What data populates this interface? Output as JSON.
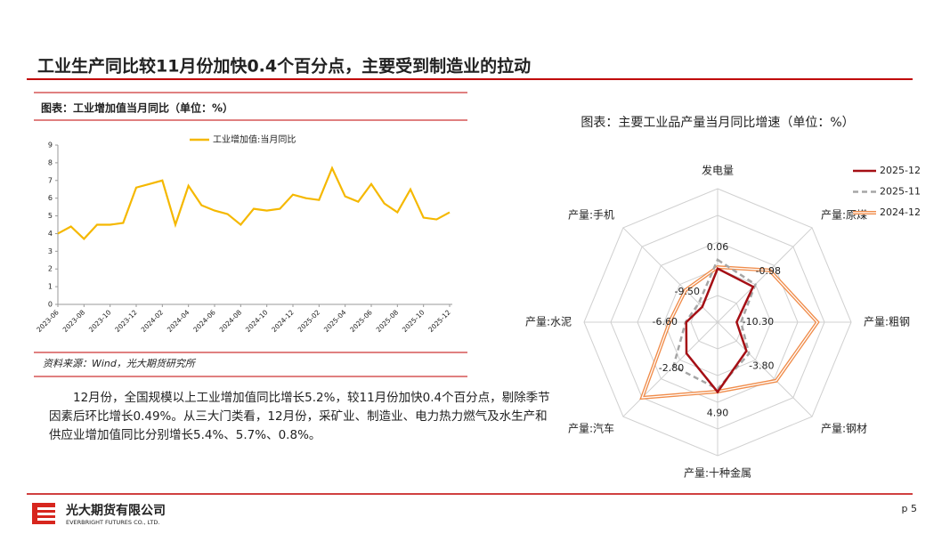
{
  "title": "工业生产同比较11月份加快0.4个百分点，主要受到制造业的拉动",
  "paragraph": "12月份，全国规模以上工业增加值同比增长5.2%，较11月份加快0.4个百分点，剔除季节因素后环比增长0.49%。从三大门类看，12月份，采矿业、制造业、电力热力燃气及水生产和供应业增加值同比分别增长5.4%、5.7%、0.8%。",
  "footer": {
    "company": "光大期货有限公司",
    "company_en": "EVERBRIGHT FUTURES CO., LTD.",
    "page": "p 5"
  },
  "chart_data": [
    {
      "type": "line",
      "title": "图表：工业增加值当月同比（单位：%）",
      "source": "资料来源：Wind，光大期货研究所",
      "categories": [
        "2023-06",
        null,
        "2023-08",
        null,
        "2023-10",
        null,
        "2023-12",
        null,
        "2024-02",
        null,
        "2024-04",
        null,
        "2024-06",
        null,
        "2024-08",
        null,
        "2024-10",
        null,
        "2024-12",
        null,
        "2025-02",
        null,
        "2025-04",
        null,
        "2025-06",
        null,
        "2025-08",
        null,
        "2025-10",
        null,
        "2025-12"
      ],
      "series": [
        {
          "name": "工业增加值:当月同比",
          "color": "#f5b800",
          "values": [
            4.0,
            4.4,
            3.7,
            4.5,
            4.5,
            4.6,
            6.6,
            6.8,
            7.0,
            4.5,
            6.7,
            5.6,
            5.3,
            5.1,
            4.5,
            5.4,
            5.3,
            5.4,
            6.2,
            6.0,
            5.9,
            7.7,
            6.1,
            5.8,
            6.8,
            5.7,
            5.2,
            6.5,
            4.9,
            4.8,
            5.2
          ]
        }
      ],
      "ylim": [
        0,
        9
      ],
      "yticks": [
        0,
        1,
        2,
        3,
        4,
        5,
        6,
        7,
        8,
        9
      ],
      "legend": "upper center"
    },
    {
      "type": "radar",
      "title": "图表：主要工业品产量当月同比增速（单位：%）",
      "categories": [
        "发电量",
        "产量:原煤",
        "产量:粗钢",
        "产量:钢材",
        "产量:十种金属",
        "产量:汽车",
        "产量:水泥",
        "产量:手机"
      ],
      "series": [
        {
          "name": "2025-12",
          "color": "#a50f15",
          "line_style": "solid",
          "values": [
            0.06,
            -0.98,
            -10.3,
            -3.8,
            4.9,
            -2.8,
            -6.6,
            -9.5
          ],
          "value_labels": [
            "0.06",
            "-0.98",
            "-10.30",
            "-3.80",
            "4.90",
            "-2.80",
            "-6.60",
            "-9.50"
          ]
        },
        {
          "name": "2025-11",
          "color": "#a6a6a6",
          "line_style": "dashed",
          "values": [
            2.7,
            0.0,
            -9.0,
            -2.7,
            4.0,
            2.7,
            -6.4,
            -8.0
          ]
        },
        {
          "name": "2024-12",
          "color": "#f08c4a",
          "line_style": "double",
          "values": [
            0.5,
            6.0,
            13.9,
            8.8,
            4.8,
            16.0,
            -1.6,
            -2.4
          ]
        }
      ],
      "rlim": [
        -16,
        24
      ],
      "legend": "upper right"
    }
  ]
}
